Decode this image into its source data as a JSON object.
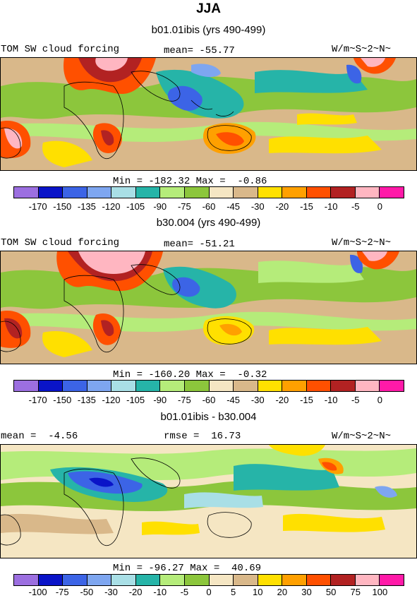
{
  "figure": {
    "title": "JJA",
    "panels": [
      {
        "subtitle": "b01.01ibis (yrs 490-499)",
        "left_label": "TOM SW cloud forcing",
        "center_label": "mean= -55.77",
        "right_label": "W/m~S~2~N~",
        "minmax": "Min = -182.32 Max =  -0.86",
        "colorbar": {
          "colors": [
            "#9c6fe0",
            "#0a14c8",
            "#3c64e6",
            "#7ea6f0",
            "#a9dfe6",
            "#26b4a8",
            "#b5ec7a",
            "#8cc63c",
            "#f5e6c3",
            "#d9b88a",
            "#ffe000",
            "#ffa000",
            "#ff5000",
            "#b22222",
            "#ffb6c1",
            "#ff1aa8"
          ],
          "ticks": [
            "-170",
            "-150",
            "-135",
            "-120",
            "-105",
            "-90",
            "-75",
            "-60",
            "-45",
            "-30",
            "-20",
            "-15",
            "-10",
            "-5",
            "0"
          ]
        }
      },
      {
        "subtitle": "b30.004 (yrs 490-499)",
        "left_label": "TOM SW cloud forcing",
        "center_label": "mean= -51.21",
        "right_label": "W/m~S~2~N~",
        "minmax": "Min = -160.20 Max =  -0.32",
        "colorbar": {
          "colors": [
            "#9c6fe0",
            "#0a14c8",
            "#3c64e6",
            "#7ea6f0",
            "#a9dfe6",
            "#26b4a8",
            "#b5ec7a",
            "#8cc63c",
            "#f5e6c3",
            "#d9b88a",
            "#ffe000",
            "#ffa000",
            "#ff5000",
            "#b22222",
            "#ffb6c1",
            "#ff1aa8"
          ],
          "ticks": [
            "-170",
            "-150",
            "-135",
            "-120",
            "-105",
            "-90",
            "-75",
            "-60",
            "-45",
            "-30",
            "-20",
            "-15",
            "-10",
            "-5",
            "0"
          ]
        }
      },
      {
        "subtitle": "b01.01ibis - b30.004",
        "left_label": "mean =  -4.56",
        "center_label": "rmse =  16.73",
        "right_label": "W/m~S~2~N~",
        "minmax": "Min = -96.27 Max =  40.69",
        "colorbar": {
          "colors": [
            "#9c6fe0",
            "#0a14c8",
            "#3c64e6",
            "#7ea6f0",
            "#a9dfe6",
            "#26b4a8",
            "#b5ec7a",
            "#8cc63c",
            "#f5e6c3",
            "#d9b88a",
            "#ffe000",
            "#ffa000",
            "#ff5000",
            "#b22222",
            "#ffb6c1",
            "#ff1aa8"
          ],
          "ticks": [
            "-100",
            "-75",
            "-50",
            "-30",
            "-20",
            "-10",
            "-5",
            "0",
            "5",
            "10",
            "20",
            "30",
            "50",
            "75",
            "100"
          ]
        }
      }
    ]
  }
}
